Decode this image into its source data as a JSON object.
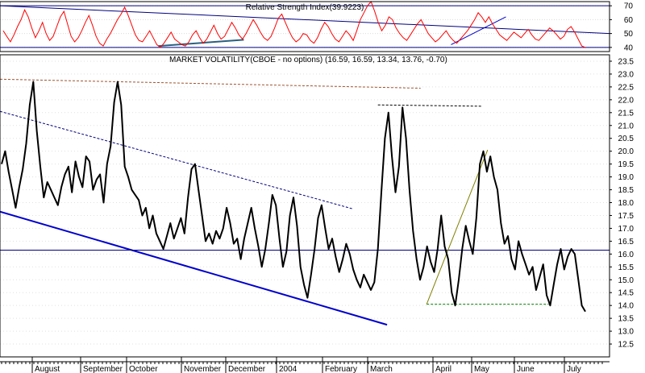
{
  "chart_data": [
    {
      "type": "line",
      "title": "Relative Strength Index(39.9223)",
      "ylim": [
        37,
        73
      ],
      "yticks": [
        40,
        50,
        60,
        70
      ],
      "reference_lines": [
        70,
        40
      ],
      "grid": true,
      "series": [
        {
          "color": "#ff0000",
          "values": [
            52,
            48,
            44,
            49,
            55,
            60,
            67,
            62,
            54,
            47,
            52,
            58,
            50,
            45,
            48,
            55,
            62,
            66,
            57,
            48,
            44,
            47,
            52,
            58,
            63,
            56,
            48,
            43,
            41,
            46,
            50,
            55,
            60,
            64,
            69,
            63,
            56,
            49,
            45,
            44,
            48,
            52,
            47,
            42,
            40,
            43,
            47,
            51,
            46,
            44,
            42,
            41,
            44,
            49,
            52,
            47,
            43,
            46,
            51,
            56,
            50,
            46,
            48,
            53,
            58,
            54,
            49,
            46,
            50,
            55,
            60,
            56,
            51,
            47,
            45,
            48,
            54,
            61,
            64,
            58,
            52,
            47,
            44,
            46,
            50,
            49,
            45,
            43,
            47,
            53,
            58,
            55,
            50,
            46,
            44,
            48,
            52,
            49,
            45,
            52,
            60,
            65,
            70,
            73,
            66,
            58,
            52,
            56,
            62,
            60,
            54,
            50,
            47,
            45,
            49,
            53,
            57,
            60,
            55,
            50,
            47,
            44,
            46,
            49,
            52,
            48,
            45,
            43,
            46,
            49,
            52,
            56,
            60,
            65,
            62,
            58,
            62,
            57,
            53,
            49,
            47,
            45,
            48,
            51,
            49,
            47,
            50,
            53,
            49,
            46,
            45,
            48,
            51,
            54,
            52,
            49,
            46,
            48,
            53,
            55,
            51,
            46,
            41,
            39.9
          ]
        }
      ],
      "trendlines": [
        {
          "color": "#000080",
          "points": [
            [
              0.0,
              70
            ],
            [
              1.0,
              50
            ]
          ]
        },
        {
          "color": "#2a6080",
          "points": [
            [
              0.26,
              41
            ],
            [
              0.4,
              45.5
            ]
          ]
        },
        {
          "color": "#0000cc",
          "points": [
            [
              0.74,
              42
            ],
            [
              0.83,
              62
            ]
          ]
        }
      ]
    },
    {
      "type": "line",
      "title": "MARKET VOLATILITY(CBOE - no options) (16.59, 16.59, 13.34, 13.76, -0.70)",
      "ylim": [
        12.0,
        23.75
      ],
      "yticks": [
        12.5,
        13.0,
        13.5,
        14.0,
        14.5,
        15.0,
        15.5,
        16.0,
        16.5,
        17.0,
        17.5,
        18.0,
        18.5,
        19.0,
        19.5,
        20.0,
        20.5,
        21.0,
        21.5,
        22.0,
        22.5,
        23.0,
        23.5
      ],
      "x_ticks": [
        "August",
        "September",
        "October",
        "November",
        "December",
        "2004",
        "February",
        "March",
        "April",
        "May",
        "June",
        "July"
      ],
      "grid": true,
      "series": [
        {
          "color": "#000000",
          "values": [
            19.5,
            20.0,
            19.2,
            18.5,
            17.8,
            18.6,
            19.3,
            20.3,
            21.8,
            22.7,
            20.8,
            19.4,
            18.2,
            18.8,
            18.5,
            18.2,
            17.9,
            18.6,
            19.1,
            19.4,
            18.4,
            19.6,
            19.0,
            18.6,
            19.8,
            19.6,
            18.5,
            18.9,
            19.1,
            18.0,
            19.5,
            20.2,
            21.9,
            22.7,
            21.8,
            19.4,
            19.0,
            18.5,
            18.3,
            18.1,
            17.5,
            17.8,
            17.0,
            17.5,
            16.8,
            16.5,
            16.2,
            16.7,
            17.2,
            16.6,
            17.0,
            17.4,
            16.8,
            18.2,
            19.3,
            19.5,
            18.5,
            17.5,
            16.5,
            16.8,
            16.4,
            16.9,
            16.6,
            17.0,
            17.8,
            17.2,
            16.4,
            16.6,
            15.8,
            16.6,
            17.2,
            17.8,
            17.0,
            16.3,
            15.5,
            16.2,
            17.2,
            18.3,
            17.9,
            16.6,
            15.5,
            16.1,
            17.5,
            18.2,
            17.1,
            15.5,
            14.8,
            14.3,
            15.2,
            16.2,
            17.4,
            17.9,
            17.0,
            16.2,
            16.6,
            15.9,
            15.3,
            15.8,
            16.4,
            16.0,
            15.4,
            15.0,
            14.7,
            15.2,
            14.9,
            14.6,
            14.9,
            16.2,
            18.4,
            20.5,
            21.5,
            19.8,
            18.4,
            19.4,
            21.7,
            20.5,
            18.5,
            16.9,
            15.8,
            15.0,
            15.5,
            16.3,
            15.7,
            15.3,
            16.2,
            17.5,
            16.3,
            15.8,
            14.5,
            14.0,
            15.0,
            16.2,
            17.1,
            16.5,
            16.0,
            17.4,
            19.5,
            20.0,
            19.2,
            19.8,
            19.0,
            18.5,
            17.2,
            16.4,
            16.7,
            15.8,
            15.4,
            16.5,
            16.0,
            15.6,
            15.2,
            15.5,
            14.6,
            15.1,
            15.6,
            14.4,
            14.0,
            14.8,
            15.6,
            16.2,
            15.4,
            15.9,
            16.2,
            16.0,
            15.0,
            14.0,
            13.76
          ]
        }
      ],
      "trendlines": [
        {
          "color": "#0000cc",
          "style": "solid",
          "points": [
            [
              0.0,
              17.65
            ],
            [
              0.635,
              13.25
            ]
          ]
        },
        {
          "color": "#000080",
          "style": "dashed",
          "points": [
            [
              0.0,
              21.55
            ],
            [
              0.58,
              17.75
            ]
          ]
        },
        {
          "color": "#a0522d",
          "style": "dashed",
          "points": [
            [
              0.0,
              22.8
            ],
            [
              0.69,
              22.45
            ]
          ]
        },
        {
          "color": "#000000",
          "style": "dashed",
          "points": [
            [
              0.62,
              21.8
            ],
            [
              0.79,
              21.75
            ]
          ]
        },
        {
          "color": "#000080",
          "style": "solid",
          "points": [
            [
              0.0,
              16.15
            ],
            [
              1.0,
              16.15
            ]
          ]
        },
        {
          "color": "#008000",
          "style": "dashed",
          "points": [
            [
              0.7,
              14.05
            ],
            [
              0.9,
              14.05
            ]
          ]
        },
        {
          "color": "#808000",
          "style": "solid",
          "points": [
            [
              0.7,
              14.05
            ],
            [
              0.8,
              20.05
            ]
          ]
        }
      ]
    }
  ]
}
